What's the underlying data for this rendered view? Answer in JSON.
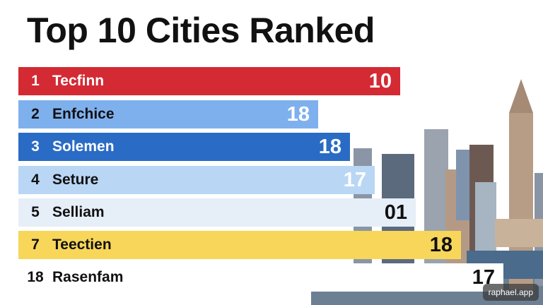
{
  "header": {
    "title": "Top 10 Cities Ranked"
  },
  "rows": [
    {
      "rank": "1",
      "name": "Tecfinn",
      "value": "10"
    },
    {
      "rank": "2",
      "name": "Enfchice",
      "value": "18"
    },
    {
      "rank": "3",
      "name": "Solemen",
      "value": "18"
    },
    {
      "rank": "4",
      "name": "Seture",
      "value": "17"
    },
    {
      "rank": "5",
      "name": "Selliam",
      "value": "01"
    },
    {
      "rank": "7",
      "name": "Teectien",
      "value": "18"
    },
    {
      "rank": "18",
      "name": "Rasenfam",
      "value": "17"
    }
  ],
  "watermark": "raphael.app"
}
